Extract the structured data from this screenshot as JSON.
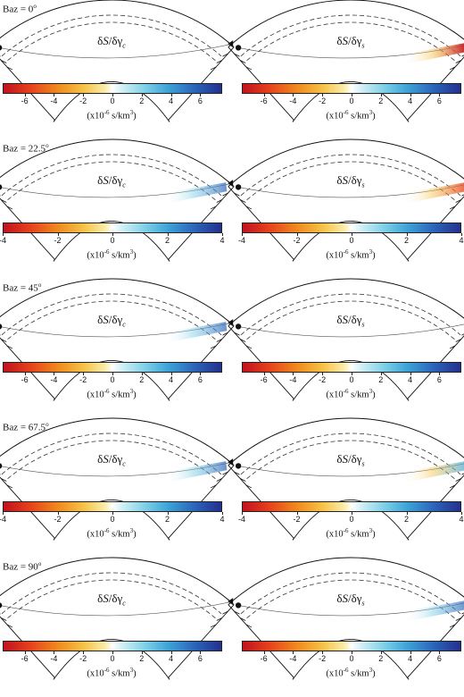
{
  "kernels": {
    "left": {
      "prefix": "δ",
      "S": "S",
      "slash": "/",
      "delta": "δ",
      "gamma": "γ",
      "sub": "c"
    },
    "right": {
      "prefix": "δ",
      "S": "S",
      "slash": "/",
      "delta": "δ",
      "gamma": "γ",
      "sub": "s"
    }
  },
  "units": {
    "pre": "(x10",
    "exp": "-6",
    "post": " s/km",
    "exp2": "3",
    "close": ")"
  },
  "colormap": [
    "#c1121f",
    "#e6401c",
    "#f08a1e",
    "#f6c348",
    "#fbeeb0",
    "#ffffff",
    "#cdeef4",
    "#7fd0e7",
    "#3fa6d8",
    "#2b63b9",
    "#23308e"
  ],
  "rows": [
    {
      "baz_label": "Baz = 0",
      "baz_sup": "o",
      "left": {
        "range": [
          -7.5,
          7.5
        ],
        "ticks": [
          "-6",
          "-4",
          "-2",
          "0",
          "2",
          "4",
          "6"
        ],
        "tick_values": [
          -6,
          -4,
          -2,
          0,
          2,
          4,
          6
        ],
        "anomaly": "none"
      },
      "right": {
        "range": [
          -7.5,
          7.5
        ],
        "ticks": [
          "-6",
          "-4",
          "-2",
          "0",
          "2",
          "4",
          "6"
        ],
        "tick_values": [
          -6,
          -4,
          -2,
          0,
          2,
          4,
          6
        ],
        "anomaly": "strong-red"
      }
    },
    {
      "baz_label": "Baz = 22.5",
      "baz_sup": "o",
      "left": {
        "range": [
          -4,
          4
        ],
        "ticks": [
          "-4",
          "-2",
          "0",
          "2",
          "4"
        ],
        "tick_values": [
          -4,
          -2,
          0,
          2,
          4
        ],
        "anomaly": "blue"
      },
      "right": {
        "range": [
          -4,
          4
        ],
        "ticks": [
          "-4",
          "-2",
          "0",
          "2",
          "4"
        ],
        "tick_values": [
          -4,
          -2,
          0,
          2,
          4
        ],
        "anomaly": "orange"
      }
    },
    {
      "baz_label": "Baz = 45",
      "baz_sup": "o",
      "left": {
        "range": [
          -7.5,
          7.5
        ],
        "ticks": [
          "-6",
          "-4",
          "-2",
          "0",
          "2",
          "4",
          "6"
        ],
        "tick_values": [
          -6,
          -4,
          -2,
          0,
          2,
          4,
          6
        ],
        "anomaly": "blue"
      },
      "right": {
        "range": [
          -7.5,
          7.5
        ],
        "ticks": [
          "-6",
          "-4",
          "-2",
          "0",
          "2",
          "4",
          "6"
        ],
        "tick_values": [
          -6,
          -4,
          -2,
          0,
          2,
          4,
          6
        ],
        "anomaly": "none"
      }
    },
    {
      "baz_label": "Baz = 67.5",
      "baz_sup": "o",
      "left": {
        "range": [
          -4,
          4
        ],
        "ticks": [
          "-4",
          "-2",
          "0",
          "2",
          "4"
        ],
        "tick_values": [
          -4,
          -2,
          0,
          2,
          4
        ],
        "anomaly": "blue"
      },
      "right": {
        "range": [
          -4,
          4
        ],
        "ticks": [
          "-4",
          "-2",
          "0",
          "2",
          "4"
        ],
        "tick_values": [
          -4,
          -2,
          0,
          2,
          4
        ],
        "anomaly": "blue-orange"
      }
    },
    {
      "baz_label": "Baz = 90",
      "baz_sup": "o",
      "left": {
        "range": [
          -7.5,
          7.5
        ],
        "ticks": [
          "-6",
          "-4",
          "-2",
          "0",
          "2",
          "4",
          "6"
        ],
        "tick_values": [
          -6,
          -4,
          -2,
          0,
          2,
          4,
          6
        ],
        "anomaly": "none"
      },
      "right": {
        "range": [
          -7.5,
          7.5
        ],
        "ticks": [
          "-6",
          "-4",
          "-2",
          "0",
          "2",
          "4",
          "6"
        ],
        "tick_values": [
          -6,
          -4,
          -2,
          0,
          2,
          4,
          6
        ],
        "anomaly": "blue"
      }
    }
  ]
}
